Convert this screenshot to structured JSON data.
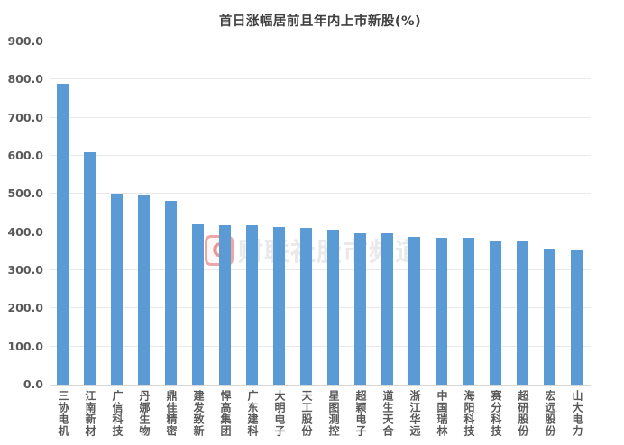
{
  "chart_data": {
    "type": "bar",
    "title": "首日涨幅居前且年内上市新股(%)",
    "categories": [
      "三协电机",
      "江南新材",
      "广信科技",
      "丹娜生物",
      "鼎佳精密",
      "建发致新",
      "悍高集团",
      "广东建科",
      "大明电子",
      "天工股份",
      "星图测控",
      "超颖电子",
      "道生天合",
      "浙江华远",
      "中国瑞林",
      "海阳科技",
      "赛分科技",
      "超研股份",
      "宏远股份",
      "山大电力"
    ],
    "values": [
      790,
      610,
      501,
      498,
      482,
      420,
      419,
      417,
      413,
      410,
      407,
      398,
      396,
      388,
      386,
      384,
      377,
      375,
      357,
      353
    ],
    "xlabel": "",
    "ylabel": "",
    "ylim": [
      0,
      900
    ],
    "yticks": [
      0,
      100,
      200,
      300,
      400,
      500,
      600,
      700,
      800,
      900
    ],
    "ytick_format_decimals": 1,
    "grid": true,
    "legend_position": "none",
    "bar_color": "#5B9BD5",
    "gridline_color": "#e9e9e9",
    "axis_label_color": "#595959",
    "title_color": "#404040"
  },
  "watermark": {
    "logo_glyph": "C",
    "text": "财联社股市频道",
    "accent_color": "#db5654"
  }
}
